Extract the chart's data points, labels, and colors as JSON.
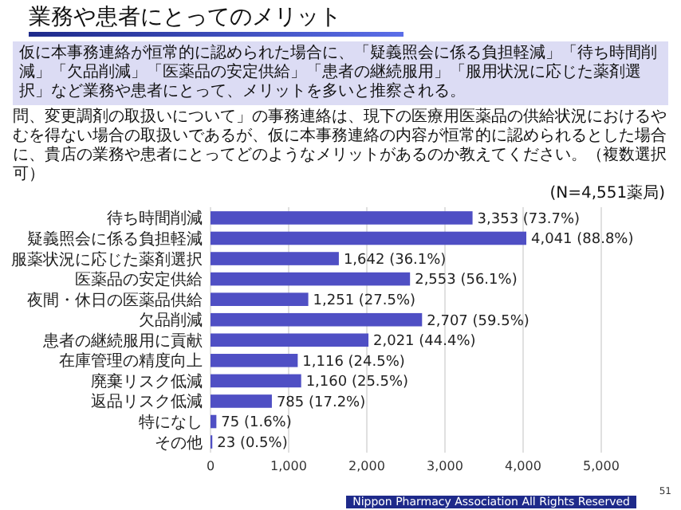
{
  "chart_data": {
    "type": "bar",
    "orientation": "horizontal",
    "title": "業務や患者にとってのメリット",
    "subtitle": "仮に本事務連絡が恒常的に認められた場合に、「疑義照会に係る負担軽減」「待ち時間削減」「欠品削減」「医薬品の安定供給」「患者の継続服用」「服用状況に応じた薬剤選択」など業務や患者にとって、メリットを多いと推察される。",
    "annotations": [
      "問、変更調剤の取扱いについて」の事務連絡は、現下の医療用医薬品の供給状況におけるやむを得ない場合の取扱いであるが、仮に本事務連絡の内容が恒常的に認められるとした場合に、貴店の業務や患者にとってどのようなメリットがあるのか教えてください。（複数選択可）",
      "(N=4,551薬局)",
      "Nippon Pharmacy Association All Rights Reserved",
      "51"
    ],
    "categories": [
      "待ち時間削減",
      "疑義照会に係る負担軽減",
      "服薬状況に応じた薬剤選択",
      "医薬品の安定供給",
      "夜間・休日の医薬品供給",
      "欠品削減",
      "患者の継続服用に貢献",
      "在庫管理の精度向上",
      "廃棄リスク低減",
      "返品リスク低減",
      "特になし",
      "その他"
    ],
    "values": [
      3353,
      4041,
      1642,
      2553,
      1251,
      2707,
      2021,
      1116,
      1160,
      785,
      75,
      23
    ],
    "value_labels": [
      "3,353 (73.7%)",
      "4,041 (88.8%)",
      "1,642 (36.1%)",
      "2,553 (56.1%)",
      "1,251 (27.5%)",
      "2,707 (59.5%)",
      "2,021 (44.4%)",
      "1,116 (24.5%)",
      "1,160 (25.5%)",
      "785 (17.2%)",
      "75 (1.6%)",
      "23 (0.5%)"
    ],
    "color": "#4f4fc4",
    "xlim": [
      0,
      5000
    ],
    "xticks": [
      {
        "value": 0,
        "label": "0"
      },
      {
        "value": 1000,
        "label": "1,000"
      },
      {
        "value": 2000,
        "label": "2,000"
      },
      {
        "value": 3000,
        "label": "3,000"
      },
      {
        "value": 4000,
        "label": "4,000"
      },
      {
        "value": 5000,
        "label": "5,000"
      }
    ],
    "grid": "x"
  }
}
